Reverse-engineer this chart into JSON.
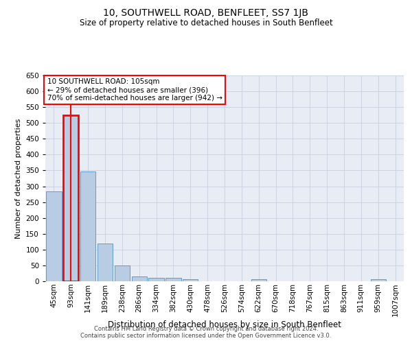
{
  "title": "10, SOUTHWELL ROAD, BENFLEET, SS7 1JB",
  "subtitle": "Size of property relative to detached houses in South Benfleet",
  "xlabel": "Distribution of detached houses by size in South Benfleet",
  "ylabel": "Number of detached properties",
  "footer_line1": "Contains HM Land Registry data © Crown copyright and database right 2024.",
  "footer_line2": "Contains public sector information licensed under the Open Government Licence v3.0.",
  "categories": [
    "45sqm",
    "93sqm",
    "141sqm",
    "189sqm",
    "238sqm",
    "286sqm",
    "334sqm",
    "382sqm",
    "430sqm",
    "478sqm",
    "526sqm",
    "574sqm",
    "622sqm",
    "670sqm",
    "718sqm",
    "767sqm",
    "815sqm",
    "863sqm",
    "911sqm",
    "959sqm",
    "1007sqm"
  ],
  "values": [
    283,
    524,
    346,
    120,
    49,
    16,
    11,
    10,
    6,
    0,
    0,
    0,
    7,
    0,
    0,
    0,
    0,
    0,
    0,
    6,
    0
  ],
  "bar_color": "#b8cce4",
  "bar_edge_color": "#5b9bd5",
  "highlight_bar_index": 1,
  "highlight_color": "#ff0000",
  "ylim": [
    0,
    650
  ],
  "yticks": [
    0,
    50,
    100,
    150,
    200,
    250,
    300,
    350,
    400,
    450,
    500,
    550,
    600,
    650
  ],
  "annotation_title": "10 SOUTHWELL ROAD: 105sqm",
  "annotation_line2": "← 29% of detached houses are smaller (396)",
  "annotation_line3": "70% of semi-detached houses are larger (942) →",
  "grid_color": "#c8d0de",
  "bg_color": "#e8edf5",
  "title_fontsize": 10,
  "subtitle_fontsize": 8.5,
  "ylabel_fontsize": 8,
  "xlabel_fontsize": 8.5,
  "tick_fontsize": 7.5,
  "annotation_fontsize": 7.5,
  "footer_fontsize": 6
}
